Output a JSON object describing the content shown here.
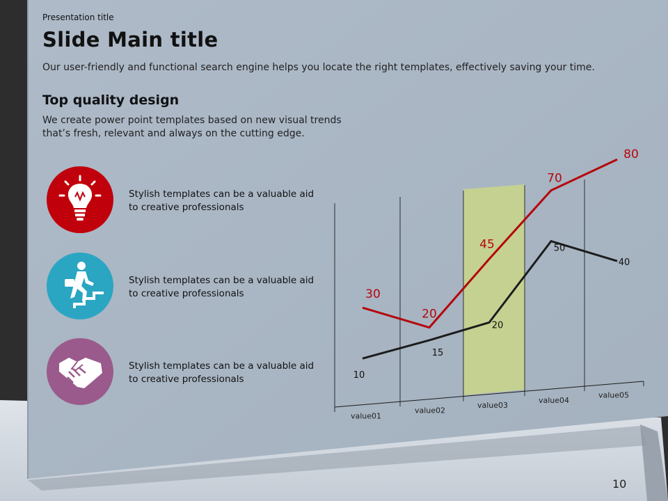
{
  "header": {
    "presentation_title": "Presentation  title",
    "main_title": "Slide Main title",
    "subtitle": "Our user-friendly and functional search engine helps you locate the right templates, effectively saving your time."
  },
  "section": {
    "heading": "Top quality design",
    "body": "We create power point templates based on new visual trends that’s fresh, relevant and always on the cutting edge."
  },
  "features": [
    {
      "icon": "lightbulb-icon",
      "color": "#c0000b",
      "text": "Stylish templates can be a valuable aid to creative professionals"
    },
    {
      "icon": "climbing-stairs-icon",
      "color": "#2aa5c2",
      "text": "Stylish templates can be a valuable aid to creative professionals"
    },
    {
      "icon": "handshake-icon",
      "color": "#9a5a8c",
      "text": "Stylish templates can be a valuable aid to creative professionals"
    }
  ],
  "page_number": "10",
  "colors": {
    "slide_bg": "#a9b6c4",
    "red_series": "#b5060b",
    "black_series": "#1c1c1c",
    "highlight": "#c8d48c"
  },
  "chart_data": {
    "type": "line",
    "categories": [
      "value01",
      "value02",
      "value03",
      "value04",
      "value05"
    ],
    "series": [
      {
        "values": [
          30,
          20,
          45,
          70,
          80
        ],
        "color": "#b5060b"
      },
      {
        "values": [
          10,
          15,
          20,
          50,
          40
        ],
        "color": "#1c1c1c"
      }
    ],
    "highlighted_category": "value03",
    "grid": "vertical",
    "title": "",
    "xlabel": "",
    "ylabel": ""
  }
}
